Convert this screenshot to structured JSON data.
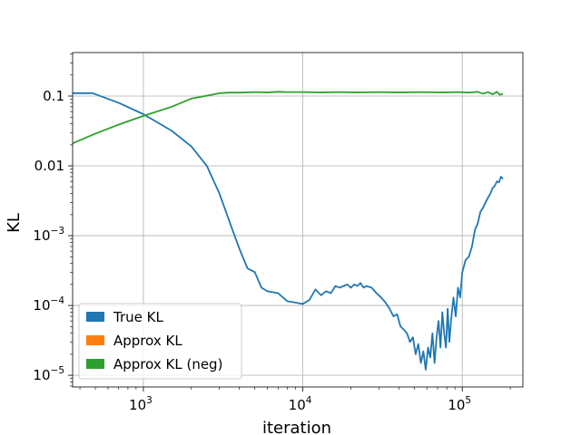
{
  "chart_data": {
    "type": "line",
    "title": "",
    "xlabel": "iteration",
    "ylabel": "KL",
    "xscale": "log",
    "yscale": "log",
    "xlim": [
      360,
      240000
    ],
    "ylim": [
      6.8e-06,
      0.42
    ],
    "grid": true,
    "legend_position": "lower-left",
    "x_ticks": [
      {
        "value": 1000,
        "base": "10",
        "exp": "3"
      },
      {
        "value": 10000,
        "base": "10",
        "exp": "4"
      },
      {
        "value": 100000,
        "base": "10",
        "exp": "5"
      }
    ],
    "y_ticks": [
      {
        "value": 0.1,
        "label": "0.1"
      },
      {
        "value": 0.01,
        "label": "0.01"
      },
      {
        "value": 0.001,
        "base": "10",
        "exp": "−3"
      },
      {
        "value": 0.0001,
        "base": "10",
        "exp": "−4"
      },
      {
        "value": 1e-05,
        "base": "10",
        "exp": "−5"
      }
    ],
    "series": [
      {
        "name": "True KL",
        "color": "#1f77b4",
        "x": [
          360,
          480,
          700,
          1000,
          1500,
          2000,
          2500,
          3000,
          3500,
          4000,
          4500,
          5000,
          5500,
          6000,
          7000,
          8000,
          9000,
          10000,
          11000,
          12000,
          13000,
          14000,
          15000,
          16000,
          17000,
          18000,
          19000,
          20000,
          21000,
          22000,
          23000,
          24000,
          25000,
          27000,
          29000,
          31000,
          33000,
          35000,
          37000,
          39000,
          41000,
          43000,
          45000,
          47000,
          49000,
          51000,
          53000,
          55000,
          57000,
          59000,
          61000,
          63000,
          65000,
          67000,
          69000,
          71000,
          73000,
          75000,
          77000,
          79000,
          81000,
          83000,
          85000,
          88000,
          91000,
          94000,
          97000,
          100000,
          105000,
          110000,
          115000,
          120000,
          125000,
          130000,
          135000,
          140000,
          145000,
          150000,
          155000,
          160000,
          165000,
          170000,
          175000,
          180000
        ],
        "y": [
          0.11,
          0.11,
          0.08,
          0.055,
          0.032,
          0.019,
          0.01,
          0.004,
          0.0015,
          0.00065,
          0.00034,
          0.0003,
          0.00018,
          0.00016,
          0.00015,
          0.000115,
          0.00011,
          0.000105,
          0.00012,
          0.00017,
          0.00014,
          0.00016,
          0.00015,
          0.00019,
          0.00018,
          0.00019,
          0.0002,
          0.00018,
          0.0002,
          0.00019,
          0.00021,
          0.00018,
          0.00019,
          0.00018,
          0.00015,
          0.00013,
          0.00011,
          9e-05,
          7e-05,
          7.5e-05,
          5e-05,
          4.5e-05,
          4e-05,
          3e-05,
          3.5e-05,
          2e-05,
          2.8e-05,
          1.5e-05,
          2.2e-05,
          1.2e-05,
          2.5e-05,
          1.8e-05,
          4e-05,
          1.5e-05,
          3.5e-05,
          6e-05,
          2.5e-05,
          8e-05,
          4e-05,
          2.5e-05,
          9e-05,
          3e-05,
          6e-05,
          0.00013,
          7e-05,
          0.00018,
          0.00013,
          0.0003,
          0.00045,
          0.0005,
          0.0007,
          0.0012,
          0.0015,
          0.0022,
          0.0025,
          0.003,
          0.0035,
          0.004,
          0.0048,
          0.0052,
          0.006,
          0.0058,
          0.007,
          0.0065
        ]
      },
      {
        "name": "Approx KL",
        "color": "#ff7f0e",
        "x": [],
        "y": []
      },
      {
        "name": "Approx KL (neg)",
        "color": "#2ca02c",
        "x": [
          360,
          500,
          700,
          1000,
          1500,
          2000,
          2500,
          3000,
          3500,
          4000,
          5000,
          6000,
          7000,
          8000,
          10000,
          13000,
          17000,
          22000,
          30000,
          40000,
          55000,
          75000,
          95000,
          110000,
          125000,
          135000,
          145000,
          155000,
          165000,
          172000,
          180000
        ],
        "y": [
          0.021,
          0.029,
          0.039,
          0.052,
          0.07,
          0.092,
          0.101,
          0.11,
          0.112,
          0.112,
          0.114,
          0.113,
          0.115,
          0.114,
          0.114,
          0.113,
          0.114,
          0.113,
          0.114,
          0.113,
          0.114,
          0.113,
          0.114,
          0.112,
          0.115,
          0.108,
          0.114,
          0.106,
          0.115,
          0.104,
          0.108
        ]
      }
    ]
  }
}
